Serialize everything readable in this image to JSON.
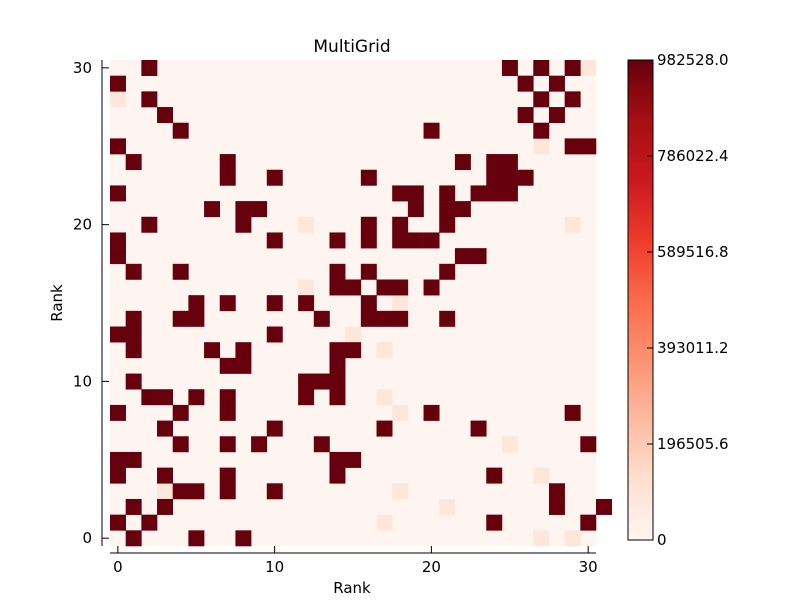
{
  "chart_data": {
    "type": "heatmap",
    "title": "MultiGrid",
    "xlabel": "Rank",
    "ylabel": "Rank",
    "xlim": [
      -0.5,
      30.5
    ],
    "ylim": [
      -0.5,
      30.5
    ],
    "x_ticks": [
      0,
      10,
      20,
      30
    ],
    "y_ticks": [
      0,
      10,
      20,
      30
    ],
    "x_tick_labels": [
      "0",
      "10",
      "20",
      "30"
    ],
    "y_tick_labels": [
      "0",
      "10",
      "20",
      "30"
    ],
    "colormap": "Reds",
    "vmin": 0,
    "vmax": 982528.0,
    "colorbar_ticks": [
      0,
      196505.6,
      393011.2,
      589516.8,
      786022.4,
      982528.0
    ],
    "colorbar_tick_labels": [
      "0",
      "196505.6",
      "393011.2",
      "589516.8",
      "786022.4",
      "982528.0"
    ],
    "background_value": 22000,
    "high_value": 982528.0,
    "high_cells": [
      [
        0,
        1
      ],
      [
        0,
        5
      ],
      [
        0,
        8
      ],
      [
        1,
        0
      ],
      [
        1,
        2
      ],
      [
        1,
        24
      ],
      [
        1,
        30
      ],
      [
        2,
        1
      ],
      [
        2,
        3
      ],
      [
        2,
        28
      ],
      [
        2,
        31
      ],
      [
        3,
        4
      ],
      [
        3,
        5
      ],
      [
        3,
        7
      ],
      [
        3,
        10
      ],
      [
        3,
        28
      ],
      [
        4,
        0
      ],
      [
        4,
        3
      ],
      [
        4,
        7
      ],
      [
        4,
        14
      ],
      [
        4,
        24
      ],
      [
        5,
        0
      ],
      [
        5,
        1
      ],
      [
        5,
        14
      ],
      [
        5,
        15
      ],
      [
        6,
        4
      ],
      [
        6,
        7
      ],
      [
        6,
        9
      ],
      [
        6,
        13
      ],
      [
        6,
        30
      ],
      [
        7,
        3
      ],
      [
        7,
        10
      ],
      [
        7,
        17
      ],
      [
        7,
        23
      ],
      [
        8,
        0
      ],
      [
        8,
        4
      ],
      [
        8,
        7
      ],
      [
        8,
        20
      ],
      [
        8,
        29
      ],
      [
        9,
        2
      ],
      [
        9,
        3
      ],
      [
        9,
        5
      ],
      [
        9,
        7
      ],
      [
        9,
        12
      ],
      [
        9,
        14
      ],
      [
        10,
        1
      ],
      [
        10,
        12
      ],
      [
        10,
        13
      ],
      [
        10,
        14
      ],
      [
        11,
        8
      ],
      [
        11,
        7
      ],
      [
        11,
        14
      ],
      [
        12,
        1
      ],
      [
        12,
        6
      ],
      [
        12,
        8
      ],
      [
        12,
        14
      ],
      [
        12,
        15
      ],
      [
        13,
        0
      ],
      [
        13,
        1
      ],
      [
        13,
        10
      ],
      [
        14,
        1
      ],
      [
        14,
        4
      ],
      [
        14,
        5
      ],
      [
        14,
        13
      ],
      [
        14,
        16
      ],
      [
        14,
        17
      ],
      [
        14,
        18
      ],
      [
        14,
        21
      ],
      [
        15,
        7
      ],
      [
        15,
        5
      ],
      [
        15,
        10
      ],
      [
        15,
        12
      ],
      [
        15,
        16
      ],
      [
        16,
        14
      ],
      [
        16,
        15
      ],
      [
        16,
        17
      ],
      [
        16,
        18
      ],
      [
        16,
        20
      ],
      [
        17,
        1
      ],
      [
        17,
        4
      ],
      [
        17,
        14
      ],
      [
        17,
        16
      ],
      [
        17,
        21
      ],
      [
        18,
        0
      ],
      [
        18,
        22
      ],
      [
        18,
        23
      ],
      [
        19,
        0
      ],
      [
        19,
        10
      ],
      [
        19,
        14
      ],
      [
        19,
        16
      ],
      [
        19,
        18
      ],
      [
        19,
        19
      ],
      [
        19,
        20
      ],
      [
        20,
        2
      ],
      [
        20,
        8
      ],
      [
        20,
        16
      ],
      [
        20,
        18
      ],
      [
        20,
        21
      ],
      [
        21,
        6
      ],
      [
        21,
        8
      ],
      [
        21,
        9
      ],
      [
        21,
        19
      ],
      [
        21,
        21
      ],
      [
        21,
        22
      ],
      [
        22,
        0
      ],
      [
        22,
        18
      ],
      [
        22,
        19
      ],
      [
        22,
        21
      ],
      [
        22,
        23
      ],
      [
        22,
        24
      ],
      [
        22,
        25
      ],
      [
        23,
        7
      ],
      [
        23,
        10
      ],
      [
        23,
        16
      ],
      [
        23,
        24
      ],
      [
        23,
        25
      ],
      [
        23,
        26
      ],
      [
        24,
        1
      ],
      [
        24,
        7
      ],
      [
        24,
        22
      ],
      [
        24,
        24
      ],
      [
        24,
        25
      ],
      [
        25,
        0
      ],
      [
        25,
        29
      ],
      [
        25,
        30
      ],
      [
        26,
        4
      ],
      [
        26,
        20
      ],
      [
        26,
        27
      ],
      [
        27,
        3
      ],
      [
        27,
        26
      ],
      [
        27,
        28
      ],
      [
        28,
        2
      ],
      [
        28,
        27
      ],
      [
        28,
        29
      ],
      [
        29,
        0
      ],
      [
        29,
        26
      ],
      [
        29,
        28
      ],
      [
        30,
        2
      ],
      [
        30,
        25
      ],
      [
        30,
        27
      ],
      [
        30,
        29
      ]
    ],
    "low_cells": [
      [
        0,
        27
      ],
      [
        0,
        29
      ],
      [
        1,
        17
      ],
      [
        2,
        21
      ],
      [
        3,
        3
      ],
      [
        3,
        18
      ],
      [
        4,
        24
      ],
      [
        4,
        27
      ],
      [
        8,
        18
      ],
      [
        9,
        17
      ],
      [
        12,
        17
      ],
      [
        13,
        15
      ],
      [
        15,
        18
      ],
      [
        16,
        12
      ],
      [
        20,
        12
      ],
      [
        20,
        29
      ],
      [
        23,
        26
      ],
      [
        24,
        22
      ],
      [
        25,
        27
      ],
      [
        28,
        0
      ],
      [
        30,
        30
      ],
      [
        6,
        25
      ]
    ],
    "low_value": 60000
  }
}
